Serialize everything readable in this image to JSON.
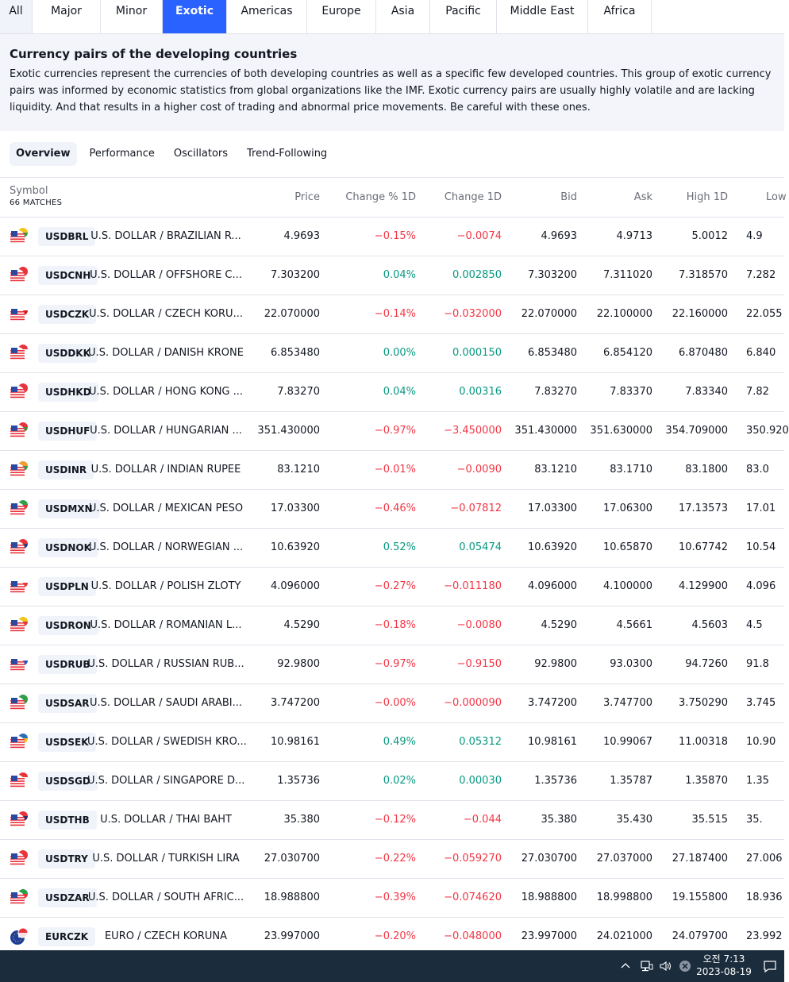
{
  "region_tabs": [
    {
      "label": "All",
      "width": 41,
      "first": true
    },
    {
      "label": "Major",
      "width": 86
    },
    {
      "label": "Minor",
      "width": 78
    },
    {
      "label": "Exotic",
      "width": 81,
      "active": true
    },
    {
      "label": "Americas",
      "width": 101
    },
    {
      "label": "Europe",
      "width": 87
    },
    {
      "label": "Asia",
      "width": 68
    },
    {
      "label": "Pacific",
      "width": 84
    },
    {
      "label": "Middle East",
      "width": 115
    },
    {
      "label": "Africa",
      "width": 80
    }
  ],
  "description": {
    "title": "Currency pairs of the developing countries",
    "text": "Exotic currencies represent the currencies of both developing countries as well as a specific few developed countries. This group of exotic currency pairs was informed by economic statistics from global organizations like the IMF. Exotic currency pairs are usually highly volatile and are lacking liquidity. And that results in a higher cost of trading and abnormal price movements. Be careful with these ones."
  },
  "view_tabs": [
    {
      "label": "Overview",
      "active": true
    },
    {
      "label": "Performance"
    },
    {
      "label": "Oscillators"
    },
    {
      "label": "Trend-Following"
    }
  ],
  "table": {
    "symbol_header": "Symbol",
    "matches": "66 MATCHES",
    "columns": [
      "Price",
      "Change % 1D",
      "Change 1D",
      "Bid",
      "Ask",
      "High 1D",
      "Low"
    ],
    "rows": [
      {
        "flag2": "#f0c419",
        "flag2b": "#2e9e48",
        "ticker": "USDBRL",
        "name": "U.S. DOLLAR / BRAZILIAN R...",
        "price": "4.9693",
        "chgp": "−0.15%",
        "chg": "−0.0074",
        "bid": "4.9693",
        "ask": "4.9713",
        "high": "5.0012",
        "low": "4.9",
        "dir": "neg"
      },
      {
        "flag2": "#e8333c",
        "flag2b": "#e8333c",
        "ticker": "USDCNH",
        "name": "U.S. DOLLAR / OFFSHORE C...",
        "price": "7.303200",
        "chgp": "0.04%",
        "chg": "0.002850",
        "bid": "7.303200",
        "ask": "7.311020",
        "high": "7.318570",
        "low": "7.282",
        "dir": "pos"
      },
      {
        "flag2": "#ffffff",
        "flag2b": "#d7141a",
        "ticker": "USDCZK",
        "name": "U.S. DOLLAR / CZECH KORU...",
        "price": "22.070000",
        "chgp": "−0.14%",
        "chg": "−0.032000",
        "bid": "22.070000",
        "ask": "22.100000",
        "high": "22.160000",
        "low": "22.055",
        "dir": "neg"
      },
      {
        "flag2": "#e8333c",
        "flag2b": "#ffffff",
        "ticker": "USDDKK",
        "name": "U.S. DOLLAR / DANISH KRONE",
        "price": "6.853480",
        "chgp": "0.00%",
        "chg": "0.000150",
        "bid": "6.853480",
        "ask": "6.854120",
        "high": "6.870480",
        "low": "6.840",
        "dir": "pos"
      },
      {
        "flag2": "#e8333c",
        "flag2b": "#e8333c",
        "ticker": "USDHKD",
        "name": "U.S. DOLLAR / HONG KONG ...",
        "price": "7.83270",
        "chgp": "0.04%",
        "chg": "0.00316",
        "bid": "7.83270",
        "ask": "7.83370",
        "high": "7.83340",
        "low": "7.82",
        "dir": "pos"
      },
      {
        "flag2": "#e8333c",
        "flag2b": "#3e8e41",
        "ticker": "USDHUF",
        "name": "U.S. DOLLAR / HUNGARIAN ...",
        "price": "351.430000",
        "chgp": "−0.97%",
        "chg": "−3.450000",
        "bid": "351.430000",
        "ask": "351.630000",
        "high": "354.709000",
        "low": "350.920",
        "dir": "neg"
      },
      {
        "flag2": "#f39c34",
        "flag2b": "#2e9e48",
        "ticker": "USDINR",
        "name": "U.S. DOLLAR / INDIAN RUPEE",
        "price": "83.1210",
        "chgp": "−0.01%",
        "chg": "−0.0090",
        "bid": "83.1210",
        "ask": "83.1710",
        "high": "83.1800",
        "low": "83.0",
        "dir": "neg"
      },
      {
        "flag2": "#2e9e48",
        "flag2b": "#e8333c",
        "ticker": "USDMXN",
        "name": "U.S. DOLLAR / MEXICAN PESO",
        "price": "17.03300",
        "chgp": "−0.46%",
        "chg": "−0.07812",
        "bid": "17.03300",
        "ask": "17.06300",
        "high": "17.13573",
        "low": "17.01",
        "dir": "neg"
      },
      {
        "flag2": "#e8333c",
        "flag2b": "#1f3e8a",
        "ticker": "USDNOK",
        "name": "U.S. DOLLAR / NORWEGIAN ...",
        "price": "10.63920",
        "chgp": "0.52%",
        "chg": "0.05474",
        "bid": "10.63920",
        "ask": "10.65870",
        "high": "10.67742",
        "low": "10.54",
        "dir": "pos"
      },
      {
        "flag2": "#ffffff",
        "flag2b": "#e8333c",
        "ticker": "USDPLN",
        "name": "U.S. DOLLAR / POLISH ZLOTY",
        "price": "4.096000",
        "chgp": "−0.27%",
        "chg": "−0.011180",
        "bid": "4.096000",
        "ask": "4.100000",
        "high": "4.129900",
        "low": "4.096",
        "dir": "neg"
      },
      {
        "flag2": "#f0c419",
        "flag2b": "#e8333c",
        "ticker": "USDRON",
        "name": "U.S. DOLLAR / ROMANIAN L...",
        "price": "4.5290",
        "chgp": "−0.18%",
        "chg": "−0.0080",
        "bid": "4.5290",
        "ask": "4.5661",
        "high": "4.5603",
        "low": "4.5",
        "dir": "neg"
      },
      {
        "flag2": "#ffffff",
        "flag2b": "#2456c9",
        "ticker": "USDRUB",
        "name": "U.S. DOLLAR / RUSSIAN RUB...",
        "price": "92.9800",
        "chgp": "−0.97%",
        "chg": "−0.9150",
        "bid": "92.9800",
        "ask": "93.0300",
        "high": "94.7260",
        "low": "91.8",
        "dir": "neg"
      },
      {
        "flag2": "#2e9e48",
        "flag2b": "#2e9e48",
        "ticker": "USDSAR",
        "name": "U.S. DOLLAR / SAUDI ARABI...",
        "price": "3.747200",
        "chgp": "−0.00%",
        "chg": "−0.000090",
        "bid": "3.747200",
        "ask": "3.747700",
        "high": "3.750290",
        "low": "3.745",
        "dir": "neg"
      },
      {
        "flag2": "#2a6ebb",
        "flag2b": "#f0c419",
        "ticker": "USDSEK",
        "name": "U.S. DOLLAR / SWEDISH KRO...",
        "price": "10.98161",
        "chgp": "0.49%",
        "chg": "0.05312",
        "bid": "10.98161",
        "ask": "10.99067",
        "high": "11.00318",
        "low": "10.90",
        "dir": "pos"
      },
      {
        "flag2": "#e8333c",
        "flag2b": "#ffffff",
        "ticker": "USDSGD",
        "name": "U.S. DOLLAR / SINGAPORE D...",
        "price": "1.35736",
        "chgp": "0.02%",
        "chg": "0.00030",
        "bid": "1.35736",
        "ask": "1.35787",
        "high": "1.35870",
        "low": "1.35",
        "dir": "pos"
      },
      {
        "flag2": "#e8333c",
        "flag2b": "#2d2a6e",
        "ticker": "USDTHB",
        "name": "U.S. DOLLAR / THAI BAHT",
        "price": "35.380",
        "chgp": "−0.12%",
        "chg": "−0.044",
        "bid": "35.380",
        "ask": "35.430",
        "high": "35.515",
        "low": "35.",
        "dir": "neg"
      },
      {
        "flag2": "#e8333c",
        "flag2b": "#e8333c",
        "ticker": "USDTRY",
        "name": "U.S. DOLLAR / TURKISH LIRA",
        "price": "27.030700",
        "chgp": "−0.22%",
        "chg": "−0.059270",
        "bid": "27.030700",
        "ask": "27.037000",
        "high": "27.187400",
        "low": "27.006",
        "dir": "neg"
      },
      {
        "flag2": "#2e9e48",
        "flag2b": "#e8333c",
        "ticker": "USDZAR",
        "name": "U.S. DOLLAR / SOUTH AFRIC...",
        "price": "18.988800",
        "chgp": "−0.39%",
        "chg": "−0.074620",
        "bid": "18.988800",
        "ask": "18.998800",
        "high": "19.155800",
        "low": "18.936",
        "dir": "neg"
      },
      {
        "flag2": "#e8333c",
        "flag2b": "#ffffff",
        "ticker": "EURCZK",
        "name": "EURO / CZECH KORUNA",
        "price": "23.997000",
        "chgp": "−0.20%",
        "chg": "−0.048000",
        "bid": "23.997000",
        "ask": "24.021000",
        "high": "24.079700",
        "low": "23.992",
        "dir": "neg",
        "euro": true
      }
    ]
  },
  "taskbar": {
    "time": "오전 7:13",
    "date": "2023-08-19"
  }
}
